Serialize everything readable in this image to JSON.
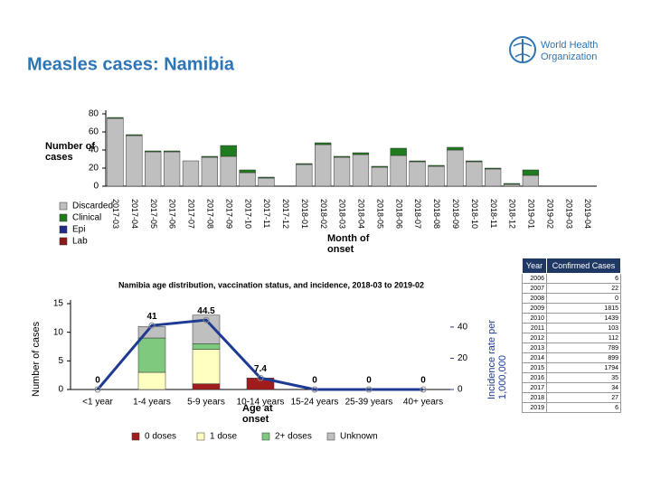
{
  "title": "Measles cases: Namibia",
  "logo": {
    "line1": "World Health",
    "line2": "Organization"
  },
  "chart_data": [
    {
      "type": "bar",
      "stacked": true,
      "legend": "left",
      "y_label": "Number of cases",
      "x_label": "Month of onset",
      "categories": [
        "2017-03",
        "2017-04",
        "2017-05",
        "2017-06",
        "2017-07",
        "2017-08",
        "2017-09",
        "2017-10",
        "2017-11",
        "2017-12",
        "2018-01",
        "2018-02",
        "2018-03",
        "2018-04",
        "2018-05",
        "2018-06",
        "2018-07",
        "2018-08",
        "2018-09",
        "2018-10",
        "2018-11",
        "2018-12",
        "2019-01",
        "2019-02",
        "2019-03",
        "2019-04"
      ],
      "series": [
        {
          "name": "Discarded",
          "color": "#bfbfbf",
          "values": [
            75,
            56,
            38,
            38,
            28,
            32,
            33,
            15,
            9,
            0,
            24,
            46,
            32,
            35,
            21,
            34,
            27,
            22,
            40,
            27,
            19,
            2,
            12,
            0,
            0,
            0
          ]
        },
        {
          "name": "Clinical",
          "color": "#1e7b1e",
          "values": [
            1,
            1,
            1,
            1,
            0,
            1,
            12,
            3,
            1,
            0,
            1,
            2,
            1,
            2,
            1,
            8,
            1,
            1,
            3,
            1,
            1,
            1,
            6,
            0,
            0,
            0
          ]
        },
        {
          "name": "Epi",
          "color": "#1f2d86",
          "values": [
            0,
            0,
            0,
            0,
            0,
            0,
            0,
            0,
            0,
            0,
            0,
            0,
            0,
            0,
            0,
            0,
            0,
            0,
            0,
            0,
            0,
            0,
            0,
            0,
            0,
            0
          ]
        },
        {
          "name": "Lab",
          "color": "#8b1a1a",
          "values": [
            0,
            0,
            0,
            0,
            0,
            0,
            0,
            0,
            0,
            0,
            0,
            0,
            0,
            0,
            0,
            0,
            0,
            0,
            0,
            0,
            0,
            0,
            0,
            0,
            0,
            0
          ]
        }
      ],
      "ylim": [
        0,
        80
      ],
      "yticks": [
        0,
        20,
        40,
        60,
        80
      ]
    },
    {
      "type": "bar",
      "stacked": true,
      "legend": "bottom",
      "title": "Namibia age distribution, vaccination status, and incidence, 2018-03 to 2019-02",
      "y_label": "Number of cases",
      "y2_label": "Incidence rate per 1,000,000",
      "x_label": "Age at onset",
      "categories": [
        "<1 year",
        "1-4 years",
        "5-9 years",
        "10-14 years",
        "15-24 years",
        "25-39 years",
        "40+ years"
      ],
      "series": [
        {
          "name": "0 doses",
          "color": "#a11d1d",
          "values": [
            0,
            0,
            1,
            2,
            0,
            0,
            0
          ]
        },
        {
          "name": "1 dose",
          "color": "#ffffc0",
          "values": [
            0,
            3,
            6,
            0,
            0,
            0,
            0
          ]
        },
        {
          "name": "2+ doses",
          "color": "#7fc97f",
          "values": [
            0,
            6,
            1,
            0,
            0,
            0,
            0
          ]
        },
        {
          "name": "Unknown",
          "color": "#bfbfbf",
          "values": [
            0,
            2,
            5,
            0,
            0,
            0,
            0
          ]
        },
        {
          "type": "line",
          "axis": "y2",
          "color": "#1f3a93",
          "values": [
            0,
            41,
            44.5,
            7.4,
            0,
            0,
            0
          ]
        }
      ],
      "ylim": [
        0,
        15
      ],
      "yticks": [
        0,
        5,
        10,
        15
      ],
      "y2lim": [
        0,
        55
      ],
      "y2ticks": [
        0,
        20,
        40
      ]
    }
  ],
  "table": {
    "header": [
      "Year",
      "Confirmed Cases"
    ],
    "rows": [
      [
        2006,
        6
      ],
      [
        2007,
        22
      ],
      [
        2008,
        0
      ],
      [
        2009,
        1815
      ],
      [
        2010,
        1439
      ],
      [
        2011,
        103
      ],
      [
        2012,
        112
      ],
      [
        2013,
        789
      ],
      [
        2014,
        899
      ],
      [
        2015,
        1794
      ],
      [
        2016,
        35
      ],
      [
        2017,
        34
      ],
      [
        2018,
        27
      ],
      [
        2019,
        6
      ]
    ]
  }
}
